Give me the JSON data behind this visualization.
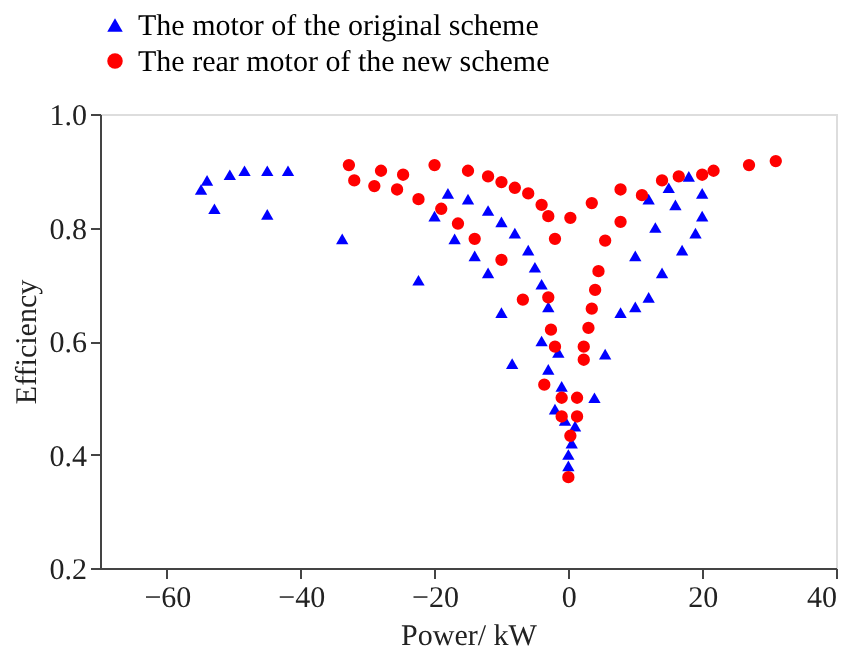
{
  "chart_data": {
    "type": "scatter",
    "xlabel": "Power/ kW",
    "ylabel": "Efficiency",
    "xlim": [
      -70,
      40
    ],
    "xticks": [
      -60,
      -40,
      -20,
      0,
      20,
      40
    ],
    "ylim": [
      0.2,
      1.0
    ],
    "yticks": [
      {
        "value": 0.2,
        "label": "0.2"
      },
      {
        "value": 0.4,
        "label": "0.4"
      },
      {
        "value": 0.6,
        "label": "0.6"
      },
      {
        "value": 0.8,
        "label": "0.8"
      },
      {
        "value": 1.0,
        "label": "1.0"
      }
    ],
    "grid": false,
    "legend": "top",
    "series": [
      {
        "name": "The motor of the original scheme",
        "color": "#0000ff",
        "marker": "triangle",
        "x": [
          -54.9,
          -52.9,
          -54,
          -50.6,
          -48.4,
          -45,
          -41.9,
          -45,
          -33.8,
          -22.4,
          -18,
          -15,
          -12,
          -10,
          -8,
          -6,
          -5,
          -4,
          -3,
          -1.5,
          -1,
          -0.5,
          0,
          0,
          -20,
          -17,
          -14,
          -12,
          -10,
          -8.4,
          -4,
          -3,
          -2,
          0.5,
          1,
          3.9,
          5.5,
          7.8,
          10,
          12,
          12,
          15,
          18,
          20,
          20,
          19,
          17,
          14,
          10,
          13,
          16
        ],
        "values": [
          0.867,
          0.833,
          0.883,
          0.893,
          0.9,
          0.9,
          0.9,
          0.823,
          0.78,
          0.707,
          0.86,
          0.85,
          0.83,
          0.81,
          0.79,
          0.76,
          0.73,
          0.7,
          0.66,
          0.58,
          0.52,
          0.46,
          0.4,
          0.38,
          0.82,
          0.78,
          0.75,
          0.72,
          0.65,
          0.56,
          0.6,
          0.55,
          0.48,
          0.42,
          0.45,
          0.5,
          0.577,
          0.65,
          0.66,
          0.677,
          0.85,
          0.87,
          0.89,
          0.86,
          0.82,
          0.79,
          0.76,
          0.72,
          0.75,
          0.8,
          0.84
        ]
      },
      {
        "name": "The rear motor of the new scheme",
        "color": "#ff0000",
        "marker": "circle",
        "x": [
          -32.8,
          -32,
          -29,
          -25.6,
          -22.4,
          -28,
          -24.7,
          -20,
          -15,
          -12,
          -10,
          -8,
          -6,
          -4,
          -3,
          -2,
          -19,
          -16.5,
          -14,
          -10,
          -6.8,
          -3,
          -2.6,
          -2,
          -3.6,
          -1,
          -1,
          0.3,
          0,
          1.3,
          1.3,
          2.3,
          2.3,
          3,
          3.5,
          4,
          4.5,
          5.5,
          7.8,
          11,
          16.5,
          21.7,
          27,
          31,
          0.3,
          3.5,
          7.8,
          14,
          20
        ],
        "values": [
          0.91,
          0.883,
          0.873,
          0.867,
          0.85,
          0.9,
          0.893,
          0.91,
          0.9,
          0.89,
          0.88,
          0.87,
          0.86,
          0.84,
          0.82,
          0.78,
          0.833,
          0.807,
          0.78,
          0.743,
          0.673,
          0.677,
          0.62,
          0.59,
          0.523,
          0.5,
          0.467,
          0.433,
          0.36,
          0.5,
          0.467,
          0.567,
          0.59,
          0.623,
          0.657,
          0.69,
          0.723,
          0.777,
          0.81,
          0.857,
          0.89,
          0.9,
          0.91,
          0.917,
          0.817,
          0.843,
          0.867,
          0.883,
          0.893
        ]
      }
    ]
  }
}
